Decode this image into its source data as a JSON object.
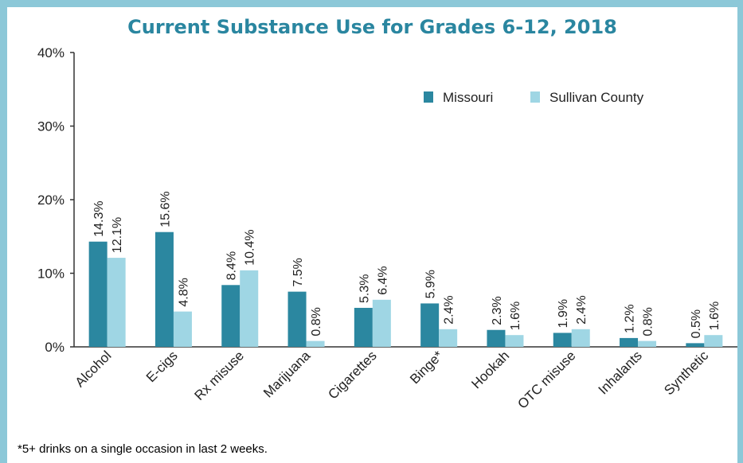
{
  "chart_data": {
    "type": "bar",
    "title": "Current Substance Use for Grades 6-12, 2018",
    "xlabel": "",
    "ylabel": "",
    "ylim": [
      0,
      40
    ],
    "yticks": [
      "0%",
      "10%",
      "20%",
      "30%",
      "40%"
    ],
    "categories": [
      "Alcohol",
      "E-cigs",
      "Rx misuse",
      "Marijuana",
      "Cigarettes",
      "Binge*",
      "Hookah",
      "OTC misuse",
      "Inhalants",
      "Synthetic"
    ],
    "series": [
      {
        "name": "Missouri",
        "color": "#2b87a0",
        "values": [
          14.3,
          15.6,
          8.4,
          7.5,
          5.3,
          5.9,
          2.3,
          1.9,
          1.2,
          0.5
        ],
        "labels": [
          "14.3%",
          "15.6%",
          "8.4%",
          "7.5%",
          "5.3%",
          "5.9%",
          "2.3%",
          "1.9%",
          "1.2%",
          "0.5%"
        ]
      },
      {
        "name": "Sullivan County",
        "color": "#9fd6e4",
        "values": [
          12.1,
          4.8,
          10.4,
          0.8,
          6.4,
          2.4,
          1.6,
          2.4,
          0.8,
          1.6
        ],
        "labels": [
          "12.1%",
          "4.8%",
          "10.4%",
          "0.8%",
          "6.4%",
          "2.4%",
          "1.6%",
          "2.4%",
          "0.8%",
          "1.6%"
        ]
      }
    ],
    "grid": false,
    "legend_position": "top-right",
    "footnote": "*5+ drinks on a single occasion in last 2 weeks."
  }
}
